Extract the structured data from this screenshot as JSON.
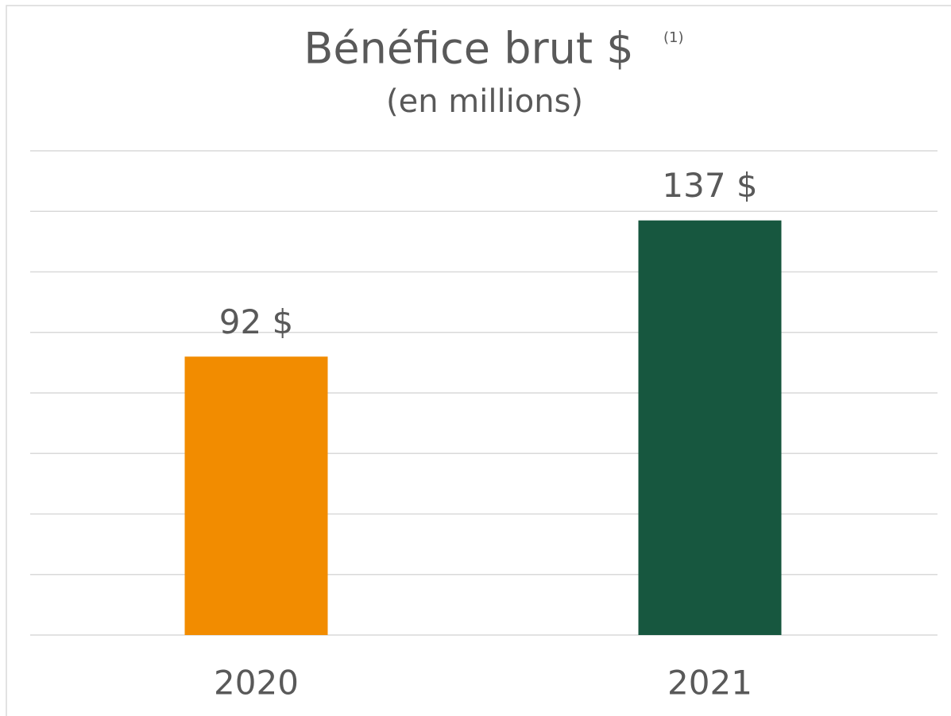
{
  "chart_data": {
    "type": "bar",
    "title": "Bénéfice brut $",
    "title_note": "(1)",
    "subtitle": "(en millions)",
    "categories": [
      "2020",
      "2021"
    ],
    "values": [
      92,
      137
    ],
    "value_labels": [
      "92 $",
      "137 $"
    ],
    "colors": [
      "#f28c00",
      "#17573f"
    ],
    "ylim": [
      0,
      160
    ],
    "yticks": [
      0,
      20,
      40,
      60,
      80,
      100,
      120,
      140,
      160
    ],
    "grid": true
  }
}
